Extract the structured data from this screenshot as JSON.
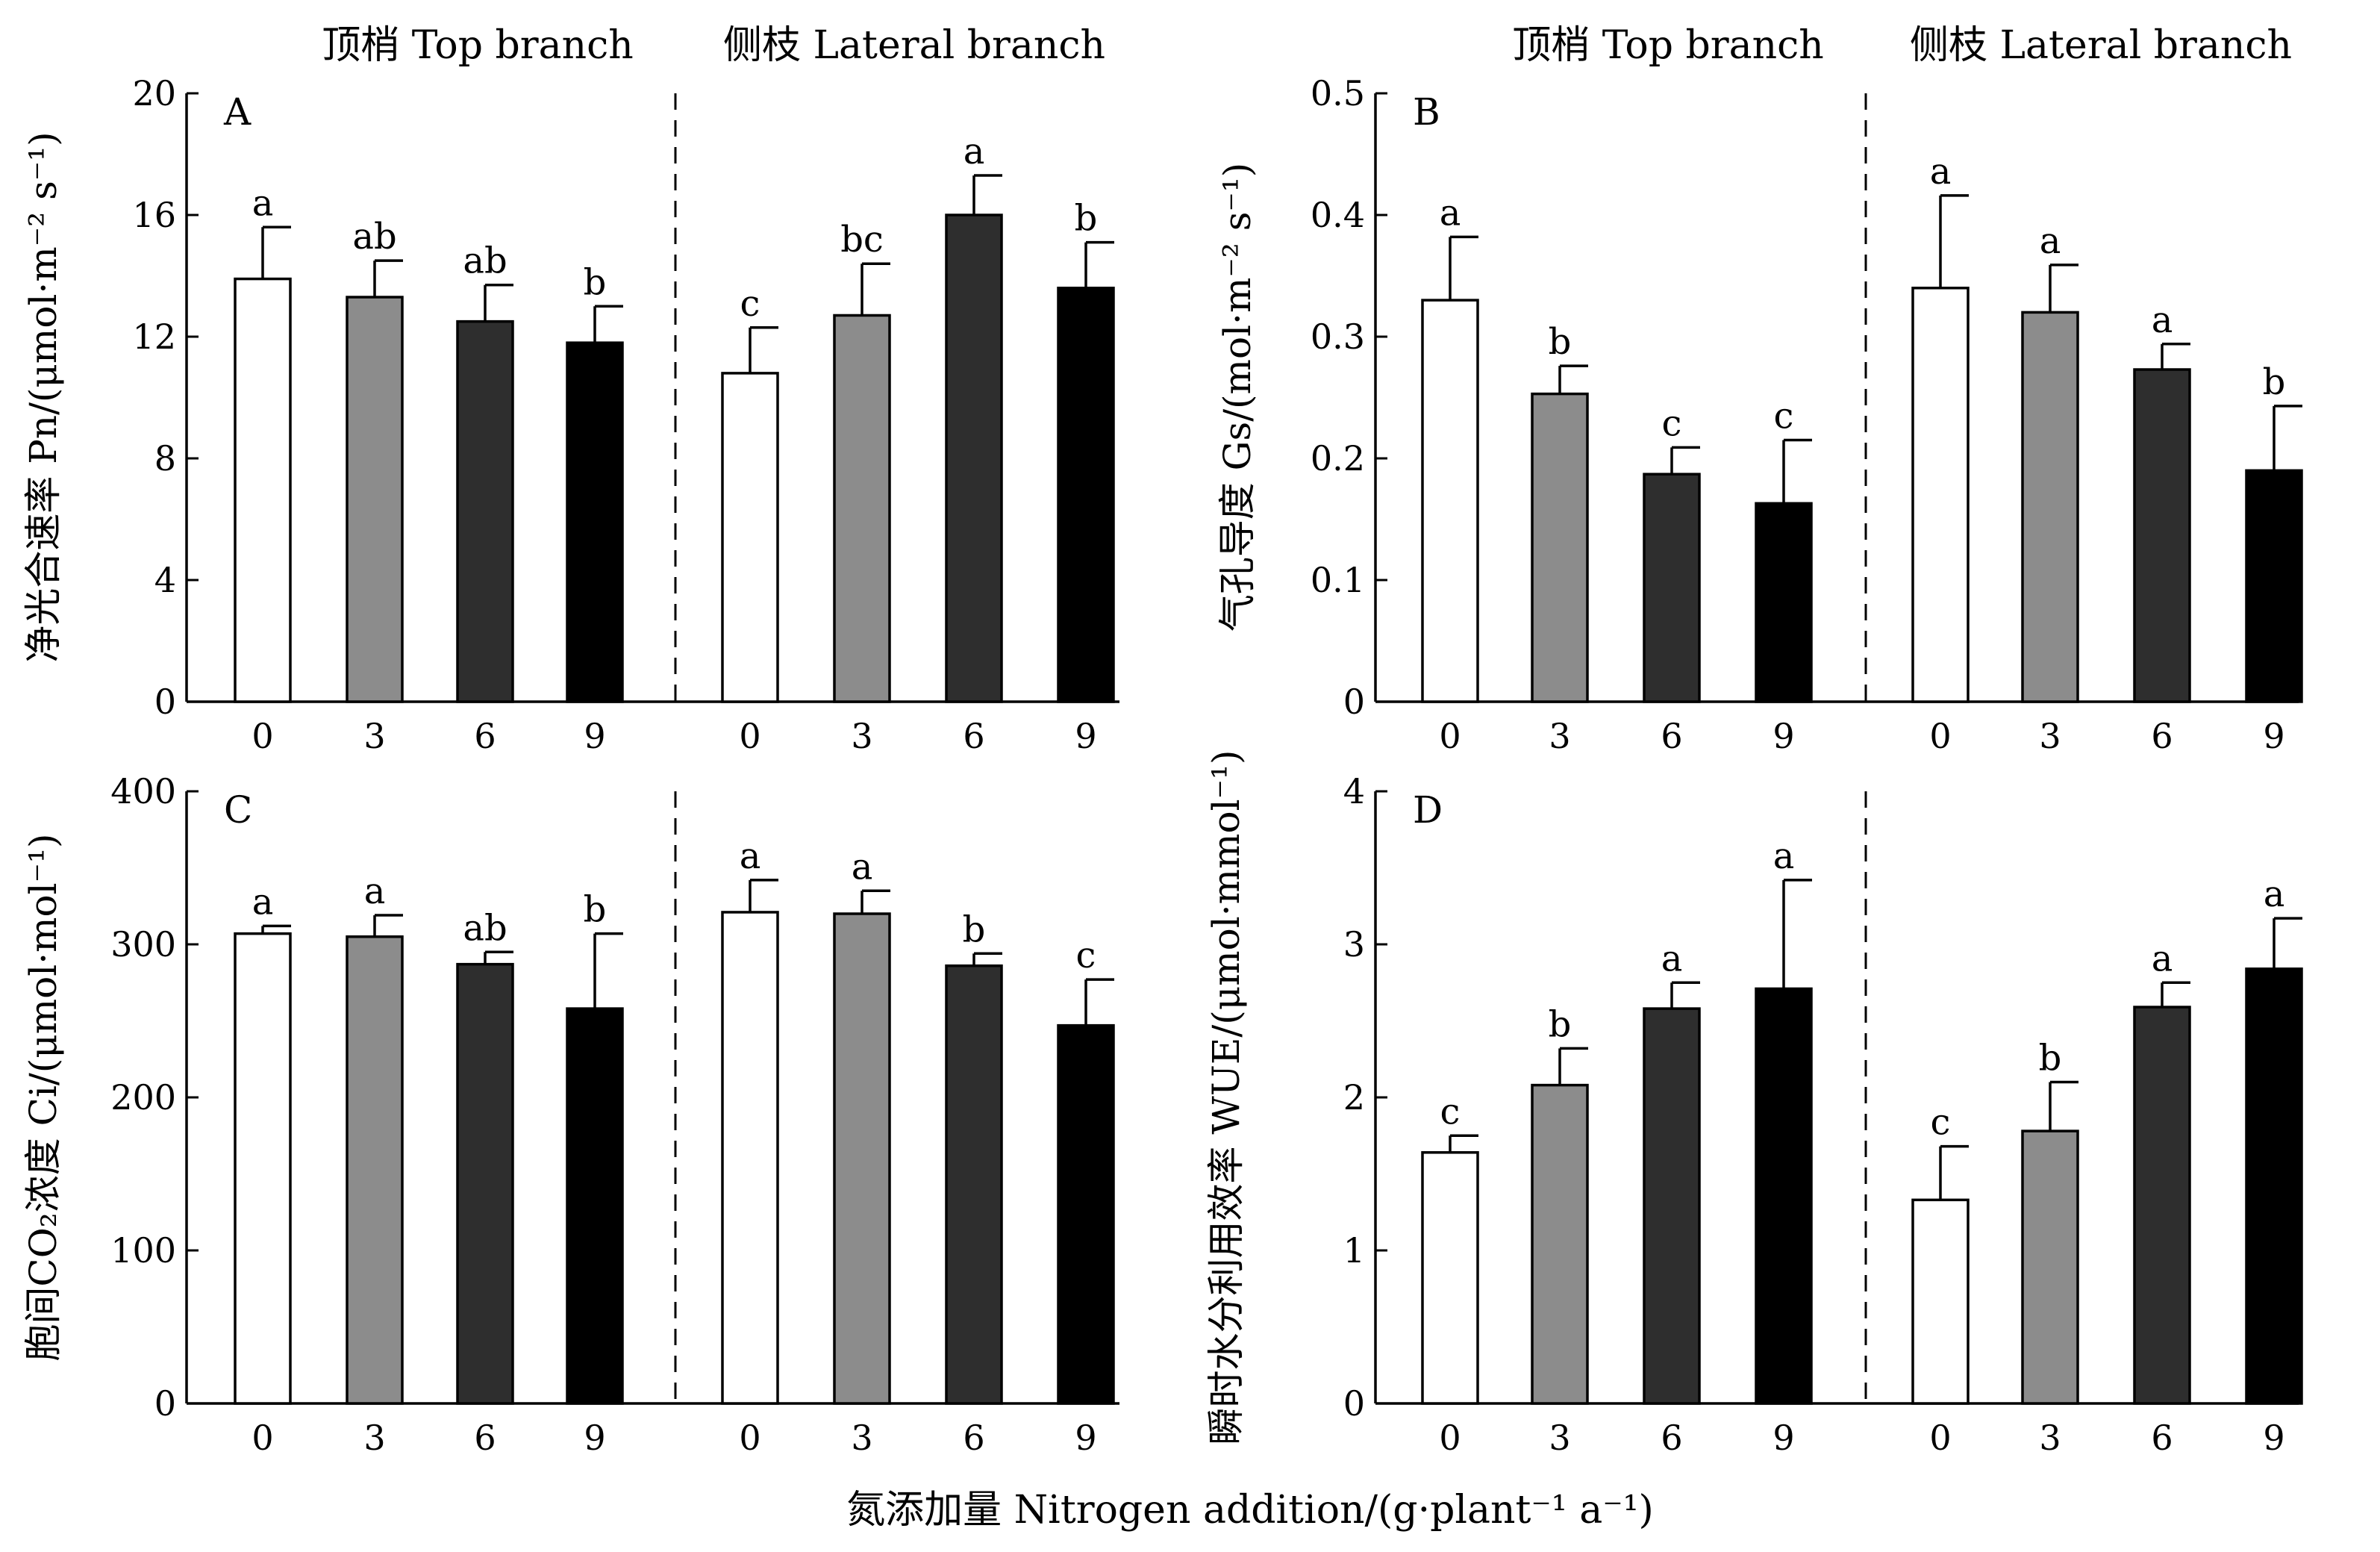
{
  "colors": {
    "n0": "#ffffff",
    "n3": "#8c8c8c",
    "n6": "#2e2e2e",
    "n9": "#000000"
  },
  "common": {
    "xlabel": "氮添加量 Nitrogen addition/(g·plant⁻¹ a⁻¹)",
    "group_titles": [
      "顶梢 Top branch",
      "侧枝 Lateral branch",
      "顶梢 Top branch",
      "侧枝 Lateral branch"
    ],
    "categories": [
      "0",
      "3",
      "6",
      "9"
    ]
  },
  "chart_data": [
    {
      "type": "bar",
      "panel_label": "A",
      "ylabel": "净光合速率 Pn/(μmol·m⁻² s⁻¹)",
      "ylim": [
        0,
        20
      ],
      "yticks": [
        "0",
        "4",
        "8",
        "12",
        "16",
        "20"
      ],
      "categories": [
        "0",
        "3",
        "6",
        "9"
      ],
      "groups": [
        {
          "name": "顶梢 Top branch",
          "values": [
            13.9,
            13.3,
            12.5,
            11.8
          ],
          "errors": [
            1.7,
            1.2,
            1.2,
            1.2
          ],
          "letters": [
            "a",
            "ab",
            "ab",
            "b"
          ]
        },
        {
          "name": "侧枝 Lateral branch",
          "values": [
            10.8,
            12.7,
            16.0,
            13.6
          ],
          "errors": [
            1.5,
            1.7,
            1.3,
            1.5
          ],
          "letters": [
            "c",
            "bc",
            "a",
            "b"
          ]
        }
      ]
    },
    {
      "type": "bar",
      "panel_label": "B",
      "ylabel": "气孔导度 Gs/(mol·m⁻² s⁻¹)",
      "ylim": [
        0,
        0.5
      ],
      "yticks": [
        "0",
        "0.1",
        "0.2",
        "0.3",
        "0.4",
        "0.5"
      ],
      "categories": [
        "0",
        "3",
        "6",
        "9"
      ],
      "groups": [
        {
          "name": "顶梢 Top branch",
          "values": [
            0.33,
            0.253,
            0.187,
            0.163
          ],
          "errors": [
            0.052,
            0.023,
            0.022,
            0.052
          ],
          "letters": [
            "a",
            "b",
            "c",
            "c"
          ]
        },
        {
          "name": "侧枝 Lateral branch",
          "values": [
            0.34,
            0.32,
            0.273,
            0.19
          ],
          "errors": [
            0.076,
            0.039,
            0.021,
            0.053
          ],
          "letters": [
            "a",
            "a",
            "a",
            "b"
          ]
        }
      ]
    },
    {
      "type": "bar",
      "panel_label": "C",
      "ylabel": "胞间CO₂浓度 Ci/(μmol·mol⁻¹)",
      "ylim": [
        0,
        400
      ],
      "yticks": [
        "0",
        "100",
        "200",
        "300",
        "400"
      ],
      "categories": [
        "0",
        "3",
        "6",
        "9"
      ],
      "groups": [
        {
          "name": "顶梢 Top branch",
          "values": [
            307,
            305,
            287,
            258
          ],
          "errors": [
            5,
            14,
            8,
            49
          ],
          "letters": [
            "a",
            "a",
            "ab",
            "b"
          ]
        },
        {
          "name": "侧枝 Lateral branch",
          "values": [
            321,
            320,
            286,
            247
          ],
          "errors": [
            21,
            15,
            8,
            30
          ],
          "letters": [
            "a",
            "a",
            "b",
            "c"
          ]
        }
      ]
    },
    {
      "type": "bar",
      "panel_label": "D",
      "ylabel": "瞬时水分利用效率 WUE/(μmol·mmol⁻¹)",
      "ylim": [
        0,
        4
      ],
      "yticks": [
        "0",
        "1",
        "2",
        "3",
        "4"
      ],
      "categories": [
        "0",
        "3",
        "6",
        "9"
      ],
      "groups": [
        {
          "name": "顶梢 Top branch",
          "values": [
            1.64,
            2.08,
            2.58,
            2.71
          ],
          "errors": [
            0.11,
            0.24,
            0.17,
            0.71
          ],
          "letters": [
            "c",
            "b",
            "a",
            "a"
          ]
        },
        {
          "name": "侧枝 Lateral branch",
          "values": [
            1.33,
            1.78,
            2.59,
            2.84
          ],
          "errors": [
            0.35,
            0.32,
            0.16,
            0.33
          ],
          "letters": [
            "c",
            "b",
            "a",
            "a"
          ]
        }
      ]
    }
  ]
}
